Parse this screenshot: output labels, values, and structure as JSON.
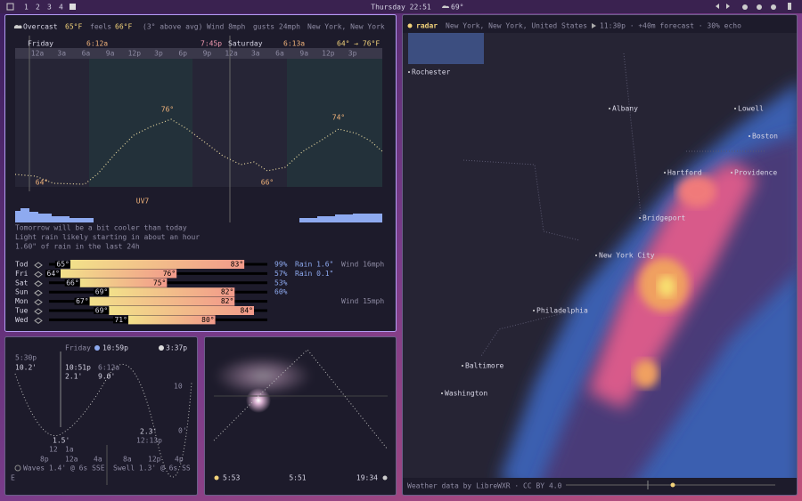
{
  "top_bar": {
    "workspaces": [
      "1",
      "2",
      "3",
      "4"
    ],
    "clock": "Thursday 22:51",
    "weather": "69°"
  },
  "weather": {
    "current": {
      "condition": "Overcast",
      "temp": "65°F",
      "feels_label": "feels",
      "feels": "66°F",
      "note": "(3° above avg)",
      "wind": "Wind 8mph",
      "gusts": "gusts 24mph",
      "location": "New York, New York"
    },
    "days": [
      {
        "name": "Friday",
        "sunrise": "6:12a",
        "sunset": "7:45p"
      },
      {
        "name": "Saturday",
        "sunrise": "6:13a"
      }
    ],
    "range": "64° → 76°F",
    "hours": [
      "12a",
      "3a",
      "6a",
      "9a",
      "12p",
      "3p",
      "6p",
      "9p",
      "12a",
      "3a",
      "6a",
      "9a",
      "12p",
      "3p"
    ],
    "temp_labels": [
      "64°",
      "76°",
      "66°",
      "74°"
    ],
    "uv": "UV7",
    "summary": [
      "Tomorrow will be a bit cooler than today",
      "Light rain likely starting in about an hour",
      "1.60\" of rain in the last 24h"
    ],
    "forecast": [
      {
        "day": "Tod",
        "lo": "65°",
        "hi": "83°",
        "precip": "99%",
        "rain": "Rain 1.6\"",
        "wind": "Wind 16mph"
      },
      {
        "day": "Fri",
        "lo": "64°",
        "hi": "76°",
        "precip": "57%",
        "rain": "Rain 0.1\""
      },
      {
        "day": "Sat",
        "lo": "66°",
        "hi": "75°",
        "precip": "53%"
      },
      {
        "day": "Sun",
        "lo": "69°",
        "hi": "82°",
        "precip": "60%"
      },
      {
        "day": "Mon",
        "lo": "67°",
        "hi": "82°",
        "wind": "Wind 15mph"
      },
      {
        "day": "Tue",
        "lo": "69°",
        "hi": "84°"
      },
      {
        "day": "Wed",
        "lo": "71°",
        "hi": "80°"
      }
    ]
  },
  "tide": {
    "day": "Friday",
    "moonset": "10:59p",
    "moonrise": "3:37p",
    "left_time": "5:30p",
    "left_height": "10.2'",
    "high_time": "10:51p",
    "high_height": "2.1'",
    "next_time": "6:12a",
    "next_height": "9.0'",
    "scale_top": "10",
    "scale_bottom": "0'",
    "low_height": "1.5'",
    "low2_height": "2.3'",
    "low2_time": "12:13p",
    "date_marks": [
      "12",
      "1a"
    ],
    "hours": [
      "8p",
      "12a",
      "4a",
      "8a",
      "12p",
      "4p"
    ],
    "waves": "Waves 1.4' @ 6s SSE",
    "swell": "Swell 1.3' @ 6s SS",
    "overflow": "E"
  },
  "sun": {
    "sunrise": "5:53",
    "noon": "5:51",
    "sunset": "19:34"
  },
  "radar": {
    "title": "radar",
    "location": "New York, New York, United States",
    "status": "11:30p · +40m forecast · 30% echo",
    "cities": [
      "Rochester",
      "Albany",
      "Lowell",
      "Boston",
      "Hartford",
      "Providence",
      "Bridgeport",
      "New York City",
      "Philadelphia",
      "Baltimore",
      "Washington"
    ],
    "credit": "Weather data by LibreWXR · CC BY 4.0"
  }
}
